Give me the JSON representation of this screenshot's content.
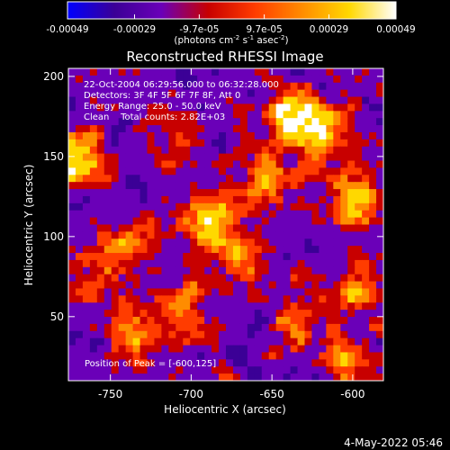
{
  "colorbar": {
    "tick_labels": [
      "-0.00049",
      "-0.00029",
      "-9.7e-05",
      "9.7e-05",
      "0.00029",
      "0.00049"
    ],
    "tick_values": [
      -0.00049,
      -0.00029,
      -9.7e-05,
      9.7e-05,
      0.00029,
      0.00049
    ],
    "range": [
      -0.00049,
      0.00049
    ],
    "units_label": "(photons cm",
    "units_exp1": "-2",
    "units_mid": " s",
    "units_exp2": "-1",
    "units_mid2": " asec",
    "units_exp3": "-2",
    "units_end": ")",
    "colors": [
      "#0000ff",
      "#3b0096",
      "#6a00b8",
      "#c80000",
      "#ff3c00",
      "#ff8c00",
      "#ffd800",
      "#ffffff"
    ]
  },
  "chart_data": {
    "type": "heatmap",
    "title": "Reconstructed RHESSI Image",
    "xlabel": "Heliocentric X (arcsec)",
    "ylabel": "Heliocentric Y (arcsec)",
    "xlim": [
      -776,
      -581
    ],
    "ylim": [
      10,
      205
    ],
    "x_ticks": [
      -750,
      -700,
      -650,
      -600
    ],
    "x_tick_labels": [
      "-750",
      "-700",
      "-650",
      "-600"
    ],
    "y_ticks": [
      50,
      100,
      150,
      200
    ],
    "y_tick_labels": [
      "50",
      "100",
      "150",
      "200"
    ],
    "annotations": [
      "22-Oct-2004 06:29:56.000 to 06:32:28.000",
      "Detectors: 3F 4F 5F 6F 7F 8F, Att 0",
      "Energy Range: 25.0 - 50.0 keV",
      "Clean    Total counts: 2.82E+03"
    ],
    "peak_label": "Position of Peak = [-600,125]",
    "peak": [
      -600,
      125
    ],
    "hot_regions": [
      {
        "x": -771,
        "y": 150,
        "level": 1.0
      },
      {
        "x": -640,
        "y": 175,
        "level": 0.85
      },
      {
        "x": -620,
        "y": 165,
        "level": 0.8
      },
      {
        "x": -600,
        "y": 125,
        "level": 1.0
      },
      {
        "x": -655,
        "y": 130,
        "level": 0.7
      },
      {
        "x": -690,
        "y": 110,
        "level": 0.75
      },
      {
        "x": -740,
        "y": 95,
        "level": 0.7
      },
      {
        "x": -700,
        "y": 55,
        "level": 0.6
      },
      {
        "x": -735,
        "y": 40,
        "level": 0.65
      },
      {
        "x": -630,
        "y": 45,
        "level": 0.55
      },
      {
        "x": -595,
        "y": 70,
        "level": 0.6
      },
      {
        "x": -760,
        "y": 75,
        "level": 0.5
      },
      {
        "x": -710,
        "y": 160,
        "level": 0.45
      },
      {
        "x": -670,
        "y": 85,
        "level": 0.55
      },
      {
        "x": -600,
        "y": 20,
        "level": 0.55
      }
    ]
  },
  "footer": {
    "date": "4-May-2022 05:46"
  }
}
